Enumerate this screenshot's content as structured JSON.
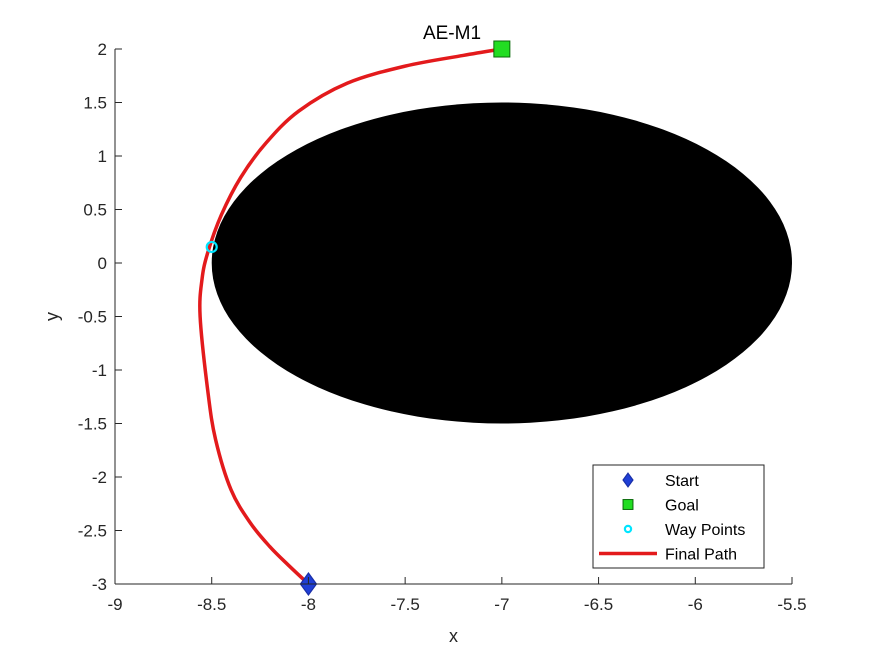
{
  "chart_data": {
    "type": "line",
    "title": "AE-M1",
    "xlabel": "x",
    "ylabel": "y",
    "xlim": [
      -9,
      -5.5
    ],
    "ylim": [
      -3,
      2
    ],
    "xticks": [
      "-9",
      "-8.5",
      "-8",
      "-7.5",
      "-7",
      "-6.5",
      "-6",
      "-5.5"
    ],
    "yticks": [
      "-3",
      "-2.5",
      "-2",
      "-1.5",
      "-1",
      "-0.5",
      "0",
      "0.5",
      "1",
      "1.5",
      "2"
    ],
    "grid": false,
    "legend_position": "bottom-right",
    "obstacle": {
      "shape": "ellipse",
      "center": [
        -7.0,
        0.0
      ],
      "radius_x": 1.5,
      "radius_y": 1.5,
      "color": "#000000"
    },
    "series": [
      {
        "name": "Start",
        "marker": "diamond",
        "color": "#1f3fd6",
        "points": [
          [
            -8.0,
            -3.0
          ]
        ]
      },
      {
        "name": "Goal",
        "marker": "square",
        "color": "#22dd22",
        "points": [
          [
            -7.0,
            2.0
          ]
        ]
      },
      {
        "name": "Way Points",
        "marker": "circle",
        "color": "#00e5ff",
        "points": [
          [
            -8.5,
            0.15
          ]
        ]
      },
      {
        "name": "Final Path",
        "marker": "line",
        "color": "#e31a1c",
        "points": [
          [
            -8.0,
            -3.0
          ],
          [
            -8.1,
            -2.83
          ],
          [
            -8.2,
            -2.65
          ],
          [
            -8.3,
            -2.43
          ],
          [
            -8.4,
            -2.12
          ],
          [
            -8.48,
            -1.65
          ],
          [
            -8.52,
            -1.2
          ],
          [
            -8.56,
            -0.5
          ],
          [
            -8.55,
            -0.15
          ],
          [
            -8.52,
            0.1
          ],
          [
            -8.45,
            0.45
          ],
          [
            -8.35,
            0.8
          ],
          [
            -8.22,
            1.12
          ],
          [
            -8.05,
            1.42
          ],
          [
            -7.8,
            1.68
          ],
          [
            -7.5,
            1.84
          ],
          [
            -7.2,
            1.94
          ],
          [
            -7.0,
            2.0
          ]
        ]
      }
    ]
  }
}
